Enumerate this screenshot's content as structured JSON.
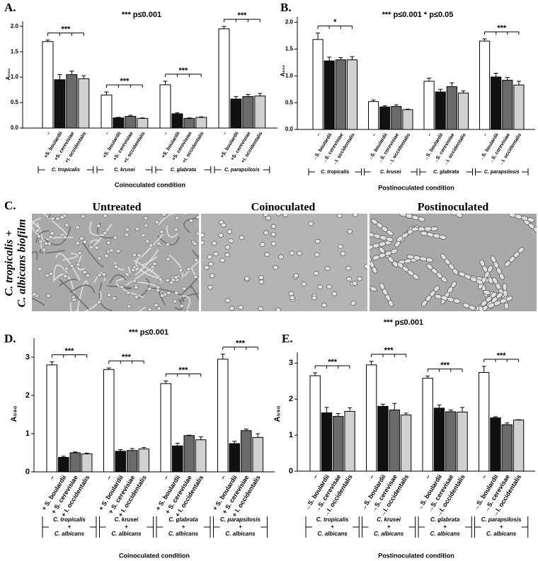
{
  "chart_data": [
    {
      "type": "bar",
      "panel": "A.",
      "annotation": "*** p≤0.001",
      "ylabel": "A₅₉₀",
      "xlabel": "Coinoculated condition",
      "categories": [
        [
          "C. tropicalis"
        ],
        [
          "C. krusei"
        ],
        [
          "C. glabrata"
        ],
        [
          "C. parapsilosis"
        ]
      ],
      "significance": [
        "***",
        "***",
        "***",
        "***"
      ],
      "series": [
        {
          "name": "–",
          "color": "#ffffff",
          "values": [
            1.7,
            0.65,
            0.85,
            1.95
          ],
          "errors": [
            0.03,
            0.06,
            0.07,
            0.05
          ]
        },
        {
          "name": "+S. boulardii",
          "color": "#111111",
          "values": [
            0.95,
            0.2,
            0.28,
            0.57
          ],
          "errors": [
            0.1,
            0.01,
            0.02,
            0.05
          ]
        },
        {
          "name": "+S. cerevisiae",
          "color": "#6a6a6a",
          "values": [
            1.05,
            0.23,
            0.19,
            0.62
          ],
          "errors": [
            0.07,
            0.02,
            0.01,
            0.04
          ]
        },
        {
          "name": "+I. occidentalis",
          "color": "#d0d0d0",
          "values": [
            0.97,
            0.19,
            0.21,
            0.63
          ],
          "errors": [
            0.06,
            0.01,
            0.01,
            0.05
          ]
        }
      ],
      "ylim": [
        0,
        2.1
      ],
      "yticks": [
        {
          "value": 0,
          "label": "0.0"
        },
        0.5,
        {
          "value": 1,
          "label": "1.0"
        },
        1.5,
        {
          "value": 2,
          "label": "2.0"
        }
      ]
    },
    {
      "type": "bar",
      "panel": "B.",
      "annotation": "*** p≤0.001  * p≤0.05",
      "ylabel": "A₅₉₀",
      "xlabel": "Postinoculated condition",
      "categories": [
        [
          "C. tropicalis"
        ],
        [
          "C. krusei"
        ],
        [
          "C. glabrata"
        ],
        [
          "C. parapsilosis"
        ]
      ],
      "significance": [
        "*",
        null,
        null,
        "***"
      ],
      "series": [
        {
          "name": "–",
          "color": "#ffffff",
          "values": [
            1.68,
            0.52,
            0.9,
            1.65
          ],
          "errors": [
            0.12,
            0.03,
            0.06,
            0.04
          ]
        },
        {
          "name": "→S. boulardii",
          "color": "#111111",
          "values": [
            1.28,
            0.42,
            0.7,
            0.98
          ],
          "errors": [
            0.07,
            0.02,
            0.05,
            0.07
          ]
        },
        {
          "name": "→S. cerevisiae",
          "color": "#6a6a6a",
          "values": [
            1.3,
            0.43,
            0.8,
            0.92
          ],
          "errors": [
            0.04,
            0.03,
            0.07,
            0.05
          ]
        },
        {
          "name": "→I. occidentalis",
          "color": "#d0d0d0",
          "values": [
            1.3,
            0.37,
            0.68,
            0.83
          ],
          "errors": [
            0.06,
            0.01,
            0.04,
            0.07
          ]
        }
      ],
      "ylim": [
        0,
        2.1
      ],
      "yticks": [
        {
          "value": 0,
          "label": "0.0"
        },
        0.5,
        {
          "value": 1,
          "label": "1.0"
        },
        1.5,
        {
          "value": 2,
          "label": "2.0"
        }
      ]
    },
    {
      "type": "bar",
      "panel": "D.",
      "annotation": "*** p≤0.001",
      "ylabel": "A₅₉₀",
      "xlabel": "Coinoculated condition",
      "categories": [
        [
          "C. tropicalis",
          "+",
          "C. albicans"
        ],
        [
          "C. krusei",
          "+",
          "C. albicans"
        ],
        [
          "C. glabrata",
          "+",
          "C. albicans"
        ],
        [
          "C. parapsilosis",
          "+",
          "C. albicans"
        ]
      ],
      "significance": [
        "***",
        "***",
        "***",
        "***"
      ],
      "series": [
        {
          "name": "–",
          "color": "#ffffff",
          "values": [
            2.8,
            2.68,
            2.31,
            2.95
          ],
          "errors": [
            0.08,
            0.04,
            0.07,
            0.13
          ]
        },
        {
          "name": "+ S. boulardii",
          "color": "#111111",
          "values": [
            0.38,
            0.54,
            0.68,
            0.74
          ],
          "errors": [
            0.03,
            0.04,
            0.07,
            0.06
          ]
        },
        {
          "name": "+ S. cerevisiae",
          "color": "#6a6a6a",
          "values": [
            0.5,
            0.56,
            0.95,
            1.08
          ],
          "errors": [
            0.02,
            0.05,
            0.01,
            0.04
          ]
        },
        {
          "name": "+ I. occidentalis",
          "color": "#d0d0d0",
          "values": [
            0.47,
            0.6,
            0.84,
            0.9
          ],
          "errors": [
            0.02,
            0.04,
            0.08,
            0.1
          ]
        }
      ],
      "ylim": [
        0,
        3.5
      ],
      "yticks": [
        0,
        1,
        2,
        3
      ]
    },
    {
      "type": "bar",
      "panel": "E.",
      "annotation": "*** p≤0.001",
      "ylabel": "A₅₉₀",
      "xlabel": "Postinoculated condition",
      "categories": [
        [
          "C. tropicalis",
          "+",
          "C. albicans"
        ],
        [
          "C. krusei",
          "+",
          "C. albicans"
        ],
        [
          "C. glabrata",
          "+",
          "C. albicans"
        ],
        [
          "C. parapsilosis",
          "+",
          "C. albicans"
        ]
      ],
      "significance": [
        "***",
        "***",
        "***",
        "***"
      ],
      "series": [
        {
          "name": "–",
          "color": "#ffffff",
          "values": [
            2.65,
            2.95,
            2.58,
            2.74
          ],
          "errors": [
            0.08,
            0.1,
            0.06,
            0.17
          ]
        },
        {
          "name": "→S. boulardii",
          "color": "#111111",
          "values": [
            1.62,
            1.8,
            1.75,
            1.48
          ],
          "errors": [
            0.15,
            0.06,
            0.09,
            0.03
          ]
        },
        {
          "name": "→S. cerevisae",
          "color": "#6a6a6a",
          "values": [
            1.52,
            1.7,
            1.65,
            1.29
          ],
          "errors": [
            0.08,
            0.18,
            0.05,
            0.05
          ]
        },
        {
          "name": "→I. occidentalis",
          "color": "#d0d0d0",
          "values": [
            1.66,
            1.56,
            1.64,
            1.42
          ],
          "errors": [
            0.1,
            0.05,
            0.13,
            0.01
          ]
        }
      ],
      "ylim": [
        0,
        3.3
      ],
      "yticks": [
        0,
        1,
        2,
        3
      ]
    }
  ],
  "micrographs": {
    "panel": "C.",
    "side_label": [
      "C. tropicalis +",
      "C. albicans biofilm"
    ],
    "titles": [
      "Untreated",
      "Coinoculated",
      "Postinoculated"
    ]
  }
}
